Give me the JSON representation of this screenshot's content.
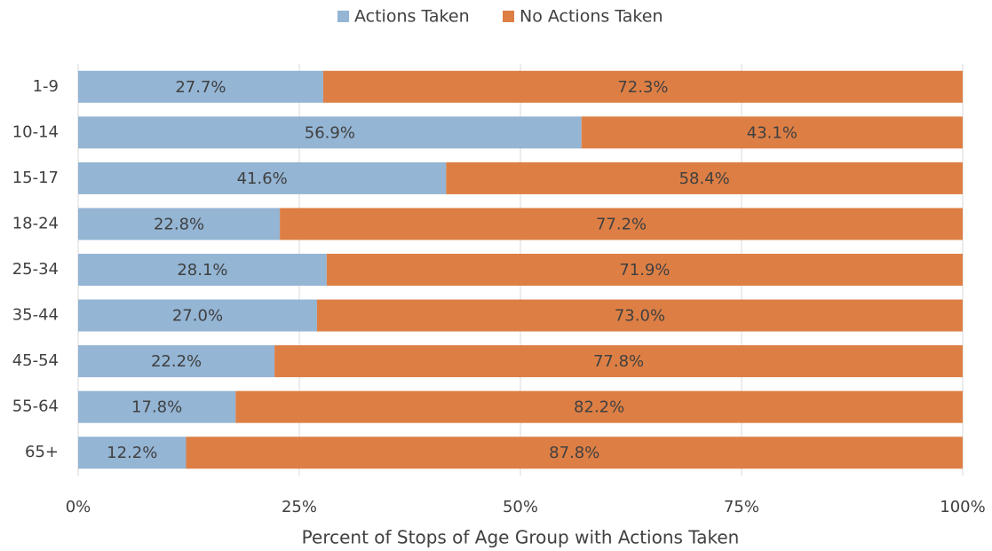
{
  "chart_data": {
    "type": "bar",
    "orientation": "horizontal",
    "stacked": true,
    "x_label": "Percent of Stops of Age Group with Actions Taken",
    "categories": [
      "1-9",
      "10-14",
      "15-17",
      "18-24",
      "25-34",
      "35-44",
      "45-54",
      "55-64",
      "65+"
    ],
    "series": [
      {
        "name": "Actions Taken",
        "color": "#94b5d4",
        "values": [
          27.7,
          56.9,
          41.6,
          22.8,
          28.1,
          27.0,
          22.2,
          17.8,
          12.2
        ],
        "value_labels": [
          "27.7%",
          "56.9%",
          "41.6%",
          "22.8%",
          "28.1%",
          "27.0%",
          "22.2%",
          "17.8%",
          "12.2%"
        ]
      },
      {
        "name": "No Actions Taken",
        "color": "#dd7f45",
        "values": [
          72.3,
          43.1,
          58.4,
          77.2,
          71.9,
          73.0,
          77.8,
          82.2,
          87.8
        ],
        "value_labels": [
          "72.3%",
          "43.1%",
          "58.4%",
          "77.2%",
          "71.9%",
          "73.0%",
          "77.8%",
          "82.2%",
          "87.8%"
        ]
      }
    ],
    "xlim": [
      0,
      100
    ],
    "xticks": [
      {
        "value": 0,
        "label": "0%"
      },
      {
        "value": 25,
        "label": "25%"
      },
      {
        "value": 50,
        "label": "50%"
      },
      {
        "value": 75,
        "label": "75%"
      },
      {
        "value": 100,
        "label": "100%"
      }
    ],
    "grid": true,
    "legend": "top"
  }
}
